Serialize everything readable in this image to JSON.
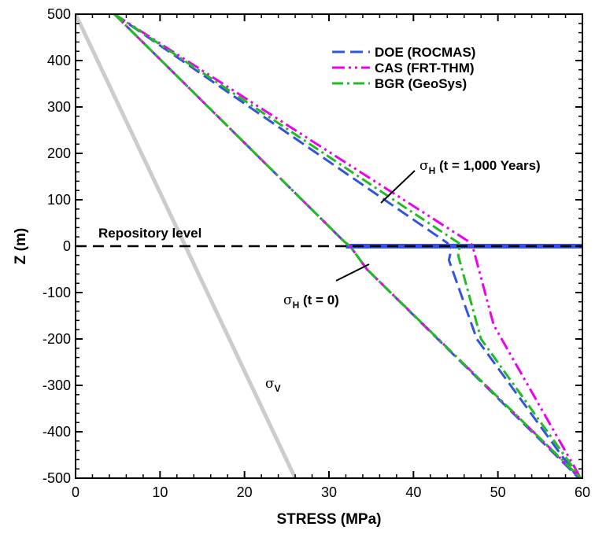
{
  "chart_data": {
    "type": "line",
    "xlabel": "STRESS (MPa)",
    "ylabel": "Z (m)",
    "xlim": [
      0,
      60
    ],
    "ylim": [
      -500,
      500
    ],
    "xticks": [
      0,
      10,
      20,
      30,
      40,
      50,
      60
    ],
    "yticks": [
      500,
      400,
      300,
      200,
      100,
      0,
      -100,
      -200,
      -300,
      -400,
      -500
    ],
    "grid": false,
    "legend_position": "top-right",
    "series": [
      {
        "name": "DOE (ROCMAS)",
        "color": "#3355dd",
        "dash": "long-dash",
        "curves": [
          {
            "x": [
              4.6,
              31.8,
              32.5,
              34.5,
              59.6
            ],
            "y": [
              500,
              10,
              0,
              -50,
              -500
            ]
          },
          {
            "x": [
              4.6,
              44.0,
              44.5,
              44.2,
              47.5,
              59.5
            ],
            "y": [
              500,
              7,
              -5,
              -30,
              -200,
              -500
            ]
          }
        ]
      },
      {
        "name": "CAS (FRT-THM)",
        "color": "#ee00ee",
        "dash": "dash-dot-dot",
        "curves": [
          {
            "x": [
              4.6,
              31.8,
              32.5,
              34.5,
              59.8
            ],
            "y": [
              500,
              10,
              0,
              -50,
              -500
            ]
          },
          {
            "x": [
              4.6,
              46.8,
              47.0,
              49.5,
              59.8
            ],
            "y": [
              500,
              7,
              0,
              -170,
              -500
            ]
          }
        ]
      },
      {
        "name": "BGR (GeoSys)",
        "color": "#22bb22",
        "dash": "dash-dot",
        "curves": [
          {
            "x": [
              4.6,
              31.8,
              32.5,
              34.5,
              59.8
            ],
            "y": [
              500,
              10,
              0,
              -50,
              -500
            ]
          },
          {
            "x": [
              4.6,
              45.5,
              45.3,
              48.0,
              59.8
            ],
            "y": [
              500,
              5,
              -20,
              -200,
              -500
            ]
          }
        ]
      }
    ],
    "discontinuity_band": {
      "x": [
        32,
        60
      ],
      "y": 0,
      "color": "#3355dd"
    },
    "sigma_v": {
      "x": [
        0,
        26
      ],
      "y": [
        500,
        -500
      ],
      "color": "#cccccc"
    },
    "repository_level": {
      "y": 0,
      "label": "Repository level"
    },
    "annotations": [
      {
        "id": "sigma-h-late",
        "symbol": "σ",
        "subscript": "H",
        "text": " (t = 1,000 Years)"
      },
      {
        "id": "sigma-h-zero",
        "symbol": "σ",
        "subscript": "H",
        "text": " (t = 0)"
      },
      {
        "id": "sigma-v",
        "symbol": "σ",
        "subscript": "V",
        "text": ""
      }
    ]
  }
}
